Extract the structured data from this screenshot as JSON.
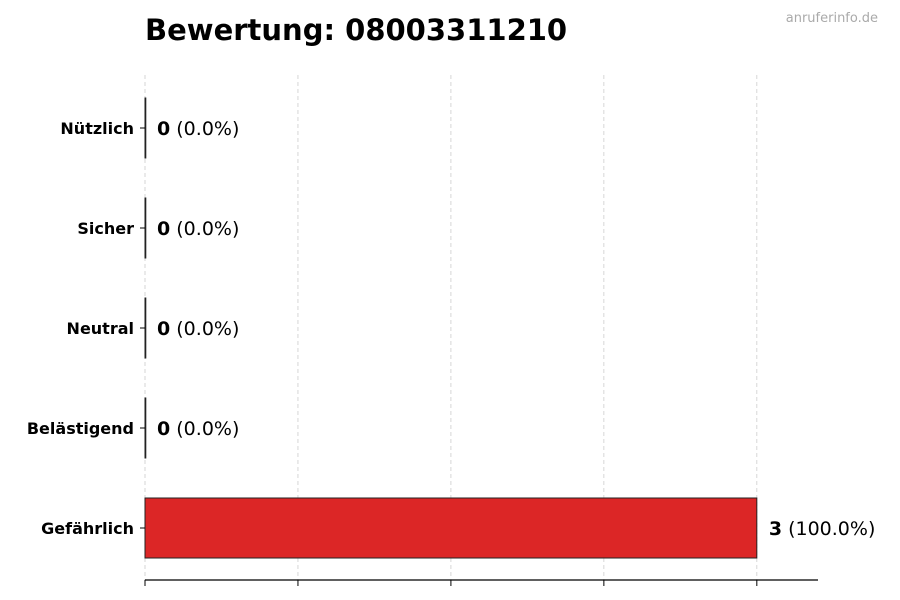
{
  "watermark": "anruferinfo.de",
  "chart_data": {
    "type": "bar",
    "orientation": "horizontal",
    "title": "Bewertung: 08003311210",
    "categories": [
      "Nützlich",
      "Sicher",
      "Neutral",
      "Belästigend",
      "Gefährlich"
    ],
    "values": [
      0,
      0,
      0,
      0,
      3
    ],
    "percent_labels": [
      "(0.0%)",
      "(0.0%)",
      "(0.0%)",
      "(0.0%)",
      "(100.0%)"
    ],
    "xlim": [
      0,
      3.3
    ],
    "xticks": [
      0,
      0.75,
      1.5,
      2.25,
      3
    ],
    "xtick_labels_shown": false,
    "grid": "vertical dashed",
    "colors": {
      "bar": "#dc2626",
      "edge": "#222222",
      "grid": "#cccccc",
      "watermark": "#aaaaaa"
    }
  }
}
